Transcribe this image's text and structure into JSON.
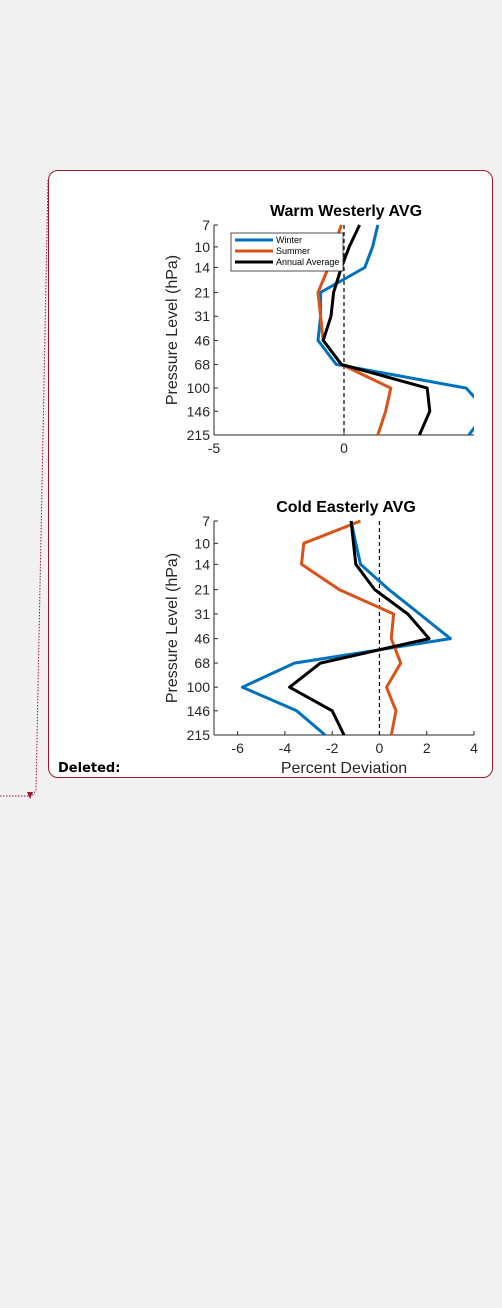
{
  "comment": {
    "label": "Deleted:",
    "border_color": "#a3162c"
  },
  "colors": {
    "winter": "#0072bd",
    "summer": "#d95319",
    "annual": "#000000"
  },
  "chart_data": [
    {
      "type": "line",
      "title": "Warm Westerly AVG",
      "xlabel": "",
      "ylabel": "Pressure Level (hPa)",
      "xlim": [
        -5,
        5
      ],
      "xticks": [
        -5,
        0
      ],
      "xtick_labels": [
        "-5",
        "0"
      ],
      "y": [
        7,
        10,
        14,
        21,
        31,
        46,
        68,
        100,
        146,
        215
      ],
      "ytick_labels": [
        "7",
        "10",
        "14",
        "21",
        "31",
        "46",
        "68",
        "100",
        "146",
        "215"
      ],
      "y_scale": "log, reversed",
      "zero_line": "dashed vertical at 0",
      "legend": {
        "placement": "top-left"
      },
      "series": [
        {
          "name": "Winter",
          "color": "#0072bd",
          "values": [
            1.3,
            1.1,
            0.8,
            -0.9,
            -0.9,
            -1.0,
            -0.3,
            4.7,
            5.5,
            4.8
          ]
        },
        {
          "name": "Summer",
          "color": "#d95319",
          "values": [
            -0.1,
            -0.4,
            -0.6,
            -1.0,
            -0.9,
            -0.8,
            -0.1,
            1.8,
            1.6,
            1.3
          ]
        },
        {
          "name": "Annual Average",
          "color": "#000000",
          "values": [
            0.6,
            0.2,
            -0.1,
            -0.4,
            -0.5,
            -0.8,
            -0.1,
            3.2,
            3.3,
            2.9
          ]
        }
      ]
    },
    {
      "type": "line",
      "title": "Cold Easterly AVG",
      "xlabel": "Percent Deviation",
      "ylabel": "Pressure Level (hPa)",
      "xlim": [
        -7,
        4
      ],
      "xticks": [
        -6,
        -4,
        -2,
        0,
        2,
        4
      ],
      "xtick_labels": [
        "-6",
        "-4",
        "-2",
        "0",
        "2",
        "4"
      ],
      "y": [
        7,
        10,
        14,
        21,
        31,
        46,
        68,
        100,
        146,
        215
      ],
      "ytick_labels": [
        "7",
        "10",
        "14",
        "21",
        "31",
        "46",
        "68",
        "100",
        "146",
        "215"
      ],
      "y_scale": "log, reversed",
      "zero_line": "dashed vertical at 0",
      "series": [
        {
          "name": "Winter",
          "color": "#0072bd",
          "values": [
            -1.2,
            -1.0,
            -0.8,
            0.4,
            1.7,
            3.0,
            -3.6,
            -5.8,
            -3.5,
            -2.3
          ]
        },
        {
          "name": "Summer",
          "color": "#d95319",
          "values": [
            -0.8,
            -3.2,
            -3.3,
            -1.7,
            0.6,
            0.5,
            0.9,
            0.3,
            0.7,
            0.5
          ]
        },
        {
          "name": "Annual Average",
          "color": "#000000",
          "values": [
            -1.2,
            -1.1,
            -1.0,
            -0.2,
            1.2,
            2.1,
            -2.5,
            -3.8,
            -2.0,
            -1.5
          ]
        }
      ]
    }
  ]
}
